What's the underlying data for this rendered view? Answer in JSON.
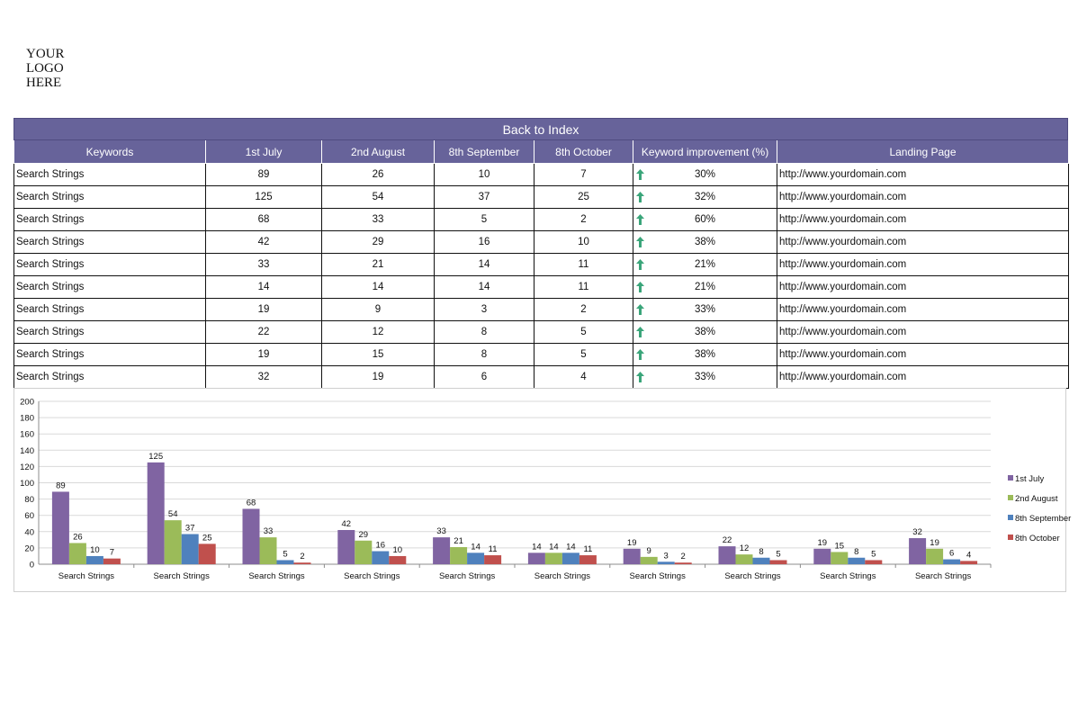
{
  "logo": {
    "lines": [
      "YOUR",
      "LOGO",
      "HERE"
    ]
  },
  "banner": {
    "label": "Back to Index"
  },
  "table": {
    "columns": [
      "Keywords",
      "1st July",
      "2nd August",
      "8th September",
      "8th October",
      "Keyword improvement (%)",
      "Landing Page"
    ],
    "rows": [
      {
        "keyword": "Search Strings",
        "jul": "89",
        "aug": "26",
        "sep": "10",
        "oct": "7",
        "improvement": "30%",
        "url": "http://www.yourdomain.com"
      },
      {
        "keyword": "Search Strings",
        "jul": "125",
        "aug": "54",
        "sep": "37",
        "oct": "25",
        "improvement": "32%",
        "url": "http://www.yourdomain.com"
      },
      {
        "keyword": "Search Strings",
        "jul": "68",
        "aug": "33",
        "sep": "5",
        "oct": "2",
        "improvement": "60%",
        "url": "http://www.yourdomain.com"
      },
      {
        "keyword": "Search Strings",
        "jul": "42",
        "aug": "29",
        "sep": "16",
        "oct": "10",
        "improvement": "38%",
        "url": "http://www.yourdomain.com"
      },
      {
        "keyword": "Search Strings",
        "jul": "33",
        "aug": "21",
        "sep": "14",
        "oct": "11",
        "improvement": "21%",
        "url": "http://www.yourdomain.com"
      },
      {
        "keyword": "Search Strings",
        "jul": "14",
        "aug": "14",
        "sep": "14",
        "oct": "11",
        "improvement": "21%",
        "url": "http://www.yourdomain.com"
      },
      {
        "keyword": "Search Strings",
        "jul": "19",
        "aug": "9",
        "sep": "3",
        "oct": "2",
        "improvement": "33%",
        "url": "http://www.yourdomain.com"
      },
      {
        "keyword": "Search Strings",
        "jul": "22",
        "aug": "12",
        "sep": "8",
        "oct": "5",
        "improvement": "38%",
        "url": "http://www.yourdomain.com"
      },
      {
        "keyword": "Search Strings",
        "jul": "19",
        "aug": "15",
        "sep": "8",
        "oct": "5",
        "improvement": "38%",
        "url": "http://www.yourdomain.com"
      },
      {
        "keyword": "Search Strings",
        "jul": "32",
        "aug": "19",
        "sep": "6",
        "oct": "4",
        "improvement": "33%",
        "url": "http://www.yourdomain.com"
      }
    ],
    "arrow_icon": "up-arrow-icon",
    "arrow_color": "#3aa57a"
  },
  "chart_data": {
    "type": "bar",
    "categories": [
      "Search Strings",
      "Search Strings",
      "Search Strings",
      "Search Strings",
      "Search Strings",
      "Search Strings",
      "Search Strings",
      "Search Strings",
      "Search Strings",
      "Search Strings"
    ],
    "series": [
      {
        "name": "1st July",
        "color": "#8064a2",
        "values": [
          89,
          125,
          68,
          42,
          33,
          14,
          19,
          22,
          19,
          32
        ]
      },
      {
        "name": "2nd August",
        "color": "#9bbb59",
        "values": [
          26,
          54,
          33,
          29,
          21,
          14,
          9,
          12,
          15,
          19
        ]
      },
      {
        "name": "8th September",
        "color": "#4f81bd",
        "values": [
          10,
          37,
          5,
          16,
          14,
          14,
          3,
          8,
          8,
          6
        ]
      },
      {
        "name": "8th October",
        "color": "#c0504d",
        "values": [
          7,
          25,
          2,
          10,
          11,
          11,
          2,
          5,
          5,
          4
        ]
      }
    ],
    "ylim": [
      0,
      200
    ],
    "yticks": [
      0,
      20,
      40,
      60,
      80,
      100,
      120,
      140,
      160,
      180,
      200
    ],
    "grid": true,
    "legend": "right"
  }
}
